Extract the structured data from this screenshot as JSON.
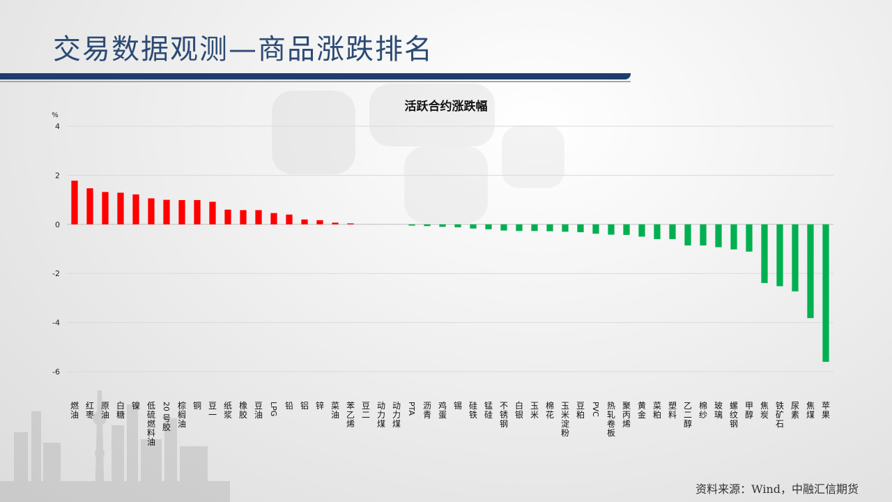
{
  "page": {
    "title": "交易数据观测—商品涨跌排名",
    "source": "资料来源：Wind，中融汇信期货"
  },
  "colors": {
    "up": "#ff0000",
    "down": "#00b050",
    "title": "#2c4a73",
    "band": "#1f3d6b"
  },
  "chart_data": {
    "type": "bar",
    "title": "活跃合约涨跌幅",
    "ylabel": "%",
    "ylim": [
      -6,
      4
    ],
    "yticks": [
      4,
      2,
      0,
      -2,
      -4,
      -6
    ],
    "grid": true,
    "categories": [
      "燃油",
      "红枣",
      "原油",
      "白糖",
      "镍",
      "低硫燃料油",
      "20号胶",
      "棕榈油",
      "铜",
      "豆一",
      "纸浆",
      "橡胶",
      "豆油",
      "LPG",
      "铅",
      "铝",
      "锌",
      "菜油",
      "苯乙烯",
      "豆二",
      "动力煤",
      "动力煤",
      "PTA",
      "沥青",
      "鸡蛋",
      "锡",
      "硅铁",
      "锰硅",
      "不锈钢",
      "白银",
      "玉米",
      "棉花",
      "玉米淀粉",
      "豆粕",
      "PVC",
      "热轧卷板",
      "聚丙烯",
      "黄金",
      "菜粕",
      "塑料",
      "乙二醇",
      "棉纱",
      "玻璃",
      "螺纹钢",
      "甲醇",
      "焦炭",
      "铁矿石",
      "尿素",
      "焦煤",
      "苹果"
    ],
    "values": [
      1.78,
      1.47,
      1.32,
      1.29,
      1.22,
      1.06,
      1.0,
      0.99,
      0.99,
      0.92,
      0.6,
      0.58,
      0.58,
      0.46,
      0.4,
      0.2,
      0.17,
      0.07,
      0.04,
      0.0,
      0.0,
      0.0,
      -0.05,
      -0.07,
      -0.1,
      -0.12,
      -0.17,
      -0.2,
      -0.25,
      -0.27,
      -0.27,
      -0.28,
      -0.3,
      -0.32,
      -0.38,
      -0.42,
      -0.43,
      -0.5,
      -0.6,
      -0.6,
      -0.86,
      -0.86,
      -0.93,
      -1.02,
      -1.11,
      -2.39,
      -2.52,
      -2.73,
      -3.82,
      -5.6
    ]
  }
}
